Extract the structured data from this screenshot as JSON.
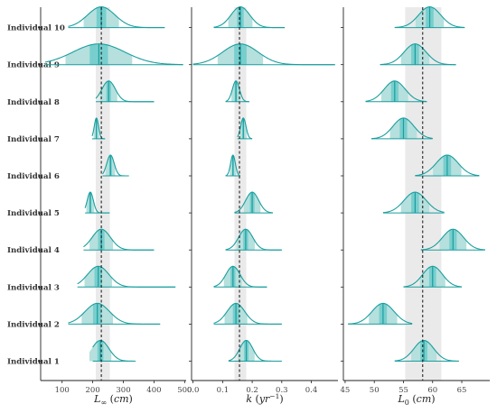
{
  "chart_data": {
    "type": "ridgeline-density",
    "row_labels": [
      "Individual 1",
      "Individual 2",
      "Individual 3",
      "Individual 4",
      "Individual 5",
      "Individual 6",
      "Individual 7",
      "Individual 8",
      "Individual 9",
      "Individual 10"
    ],
    "colors": {
      "curve": "#1a9e9e",
      "fill": "#b5e0dd",
      "interval": "#43c0c0",
      "band": "#d9d9d9",
      "axis": "#222222"
    },
    "panels": [
      {
        "xlabel_main": "L",
        "xlabel_sub": "∞",
        "xlabel_unit": "cm",
        "xlim": [
          30,
          505
        ],
        "xticks": [
          100,
          200,
          300,
          400,
          500
        ],
        "xtick_labels": [
          "100",
          "200",
          "300",
          "400",
          "500"
        ],
        "ref_line": 228,
        "band": [
          210,
          256
        ],
        "distributions": [
          {
            "mean": 225,
            "sd": 28,
            "tail": [
              200,
              340
            ]
          },
          {
            "mean": 215,
            "sd": 40,
            "tail": [
              120,
              420
            ]
          },
          {
            "mean": 218,
            "sd": 35,
            "tail": [
              150,
              470
            ]
          },
          {
            "mean": 228,
            "sd": 30,
            "tail": [
              170,
              400
            ]
          },
          {
            "mean": 192,
            "sd": 10,
            "tail": [
              175,
              255
            ]
          },
          {
            "mean": 258,
            "sd": 12,
            "tail": [
              232,
              318
            ]
          },
          {
            "mean": 212,
            "sd": 7,
            "tail": [
              198,
              240
            ]
          },
          {
            "mean": 252,
            "sd": 22,
            "tail": [
              210,
              400
            ]
          },
          {
            "mean": 220,
            "sd": 85,
            "tail": [
              45,
              495
            ]
          },
          {
            "mean": 228,
            "sd": 45,
            "tail": [
              120,
              435
            ]
          }
        ]
      },
      {
        "xlabel_main": "k",
        "xlabel_sub": "",
        "xlabel_unit": "yr",
        "xlabel_sup": "−1",
        "xlim": [
          -0.005,
          0.49
        ],
        "xticks": [
          0.0,
          0.1,
          0.2,
          0.3,
          0.4
        ],
        "xtick_labels": [
          "0.0",
          "0.1",
          "0.2",
          "0.3",
          "0.4"
        ],
        "ref_line": 0.157,
        "band": [
          0.14,
          0.18
        ],
        "distributions": [
          {
            "mean": 0.18,
            "sd": 0.022,
            "tail": [
              0.12,
              0.3
            ]
          },
          {
            "mean": 0.145,
            "sd": 0.03,
            "tail": [
              0.07,
              0.3
            ]
          },
          {
            "mean": 0.135,
            "sd": 0.024,
            "tail": [
              0.07,
              0.25
            ]
          },
          {
            "mean": 0.178,
            "sd": 0.024,
            "tail": [
              0.11,
              0.3
            ]
          },
          {
            "mean": 0.2,
            "sd": 0.022,
            "tail": [
              0.14,
              0.27
            ]
          },
          {
            "mean": 0.135,
            "sd": 0.008,
            "tail": [
              0.11,
              0.16
            ]
          },
          {
            "mean": 0.17,
            "sd": 0.009,
            "tail": [
              0.15,
              0.2
            ]
          },
          {
            "mean": 0.145,
            "sd": 0.012,
            "tail": [
              0.11,
              0.19
            ]
          },
          {
            "mean": 0.16,
            "sd": 0.06,
            "tail": [
              0.0,
              0.48
            ]
          },
          {
            "mean": 0.16,
            "sd": 0.032,
            "tail": [
              0.07,
              0.31
            ]
          }
        ]
      },
      {
        "xlabel_main": "L",
        "xlabel_sub": "0",
        "xlabel_unit": "cm",
        "xlim": [
          44.7,
          69.8
        ],
        "xticks": [
          45,
          50,
          55,
          60,
          65
        ],
        "xtick_labels": [
          "45",
          "50",
          "55",
          "60",
          "65"
        ],
        "ref_line": 58.3,
        "band": [
          55.3,
          61.5
        ],
        "distributions": [
          {
            "mean": 58.5,
            "sd": 1.7,
            "tail": [
              53.5,
              64.5
            ]
          },
          {
            "mean": 51.5,
            "sd": 1.9,
            "tail": [
              45.5,
              56.5
            ]
          },
          {
            "mean": 60.0,
            "sd": 1.7,
            "tail": [
              55.0,
              65.0
            ]
          },
          {
            "mean": 63.5,
            "sd": 1.8,
            "tail": [
              58.0,
              69.0
            ]
          },
          {
            "mean": 57.0,
            "sd": 1.9,
            "tail": [
              51.5,
              62.0
            ]
          },
          {
            "mean": 62.5,
            "sd": 1.9,
            "tail": [
              57.0,
              68.0
            ]
          },
          {
            "mean": 55.0,
            "sd": 1.8,
            "tail": [
              49.5,
              60.0
            ]
          },
          {
            "mean": 53.5,
            "sd": 1.8,
            "tail": [
              48.5,
              59.0
            ]
          },
          {
            "mean": 57.0,
            "sd": 1.9,
            "tail": [
              51.0,
              64.0
            ]
          },
          {
            "mean": 59.5,
            "sd": 1.9,
            "tail": [
              53.5,
              65.5
            ]
          }
        ]
      }
    ]
  }
}
